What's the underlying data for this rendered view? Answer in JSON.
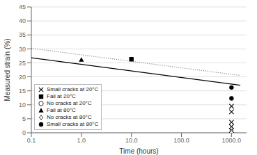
{
  "chart_data": {
    "type": "scatter",
    "xlabel": "Time (hours)",
    "ylabel": "Measured strain (%)",
    "log": "x",
    "xlim": [
      0.1,
      2000.0
    ],
    "xticks": [
      {
        "value": 0.1,
        "label": "0.1"
      },
      {
        "value": 1,
        "label": "1.0"
      },
      {
        "value": 10,
        "label": "10.0"
      },
      {
        "value": 100,
        "label": "100.0"
      },
      {
        "value": 1000,
        "label": "1000.0"
      }
    ],
    "ylim": [
      0,
      45
    ],
    "yticks": [
      0,
      5,
      10,
      15,
      20,
      25,
      30,
      35,
      40,
      45
    ],
    "grid": "y",
    "legend": "lower left",
    "series": [
      {
        "type": "line",
        "color": "#000000",
        "line_style": "solid",
        "x": [
          0.1,
          1500.0
        ],
        "values": [
          26.8,
          17.0
        ]
      },
      {
        "type": "line",
        "color": "#777777",
        "line_style": "dotted",
        "x": [
          0.1,
          1500.0
        ],
        "values": [
          30.2,
          20.5
        ]
      },
      {
        "type": "scatter",
        "name": "Small cracks at 20°C",
        "marker": "x",
        "color": "#000000",
        "x": [
          1000.0,
          1000.0,
          1000.0,
          1000.0,
          1000.0
        ],
        "values": [
          9.5,
          7.5,
          3.8,
          2.2,
          0.8
        ]
      },
      {
        "type": "scatter",
        "name": "Fail at 20°C",
        "marker": "square",
        "color": "#000000",
        "x": [
          10.0
        ],
        "values": [
          26.3
        ]
      },
      {
        "type": "scatter",
        "name": "No cracks at 20°C",
        "marker": "circle-open",
        "color": "#000000",
        "x": [],
        "values": []
      },
      {
        "type": "scatter",
        "name": "Fail at 80°C",
        "marker": "triangle",
        "color": "#000000",
        "x": [
          1.0
        ],
        "values": [
          26.1
        ]
      },
      {
        "type": "scatter",
        "name": "No cracks at 80°C",
        "marker": "diamond-open",
        "color": "#000000",
        "x": [
          1000.0,
          1000.0
        ],
        "values": [
          0.5,
          0.1
        ]
      },
      {
        "type": "scatter",
        "name": "Small cracks at 80°C",
        "marker": "circle",
        "color": "#000000",
        "x": [
          1000.0,
          1000.0
        ],
        "values": [
          16.2,
          12.3
        ]
      }
    ]
  }
}
